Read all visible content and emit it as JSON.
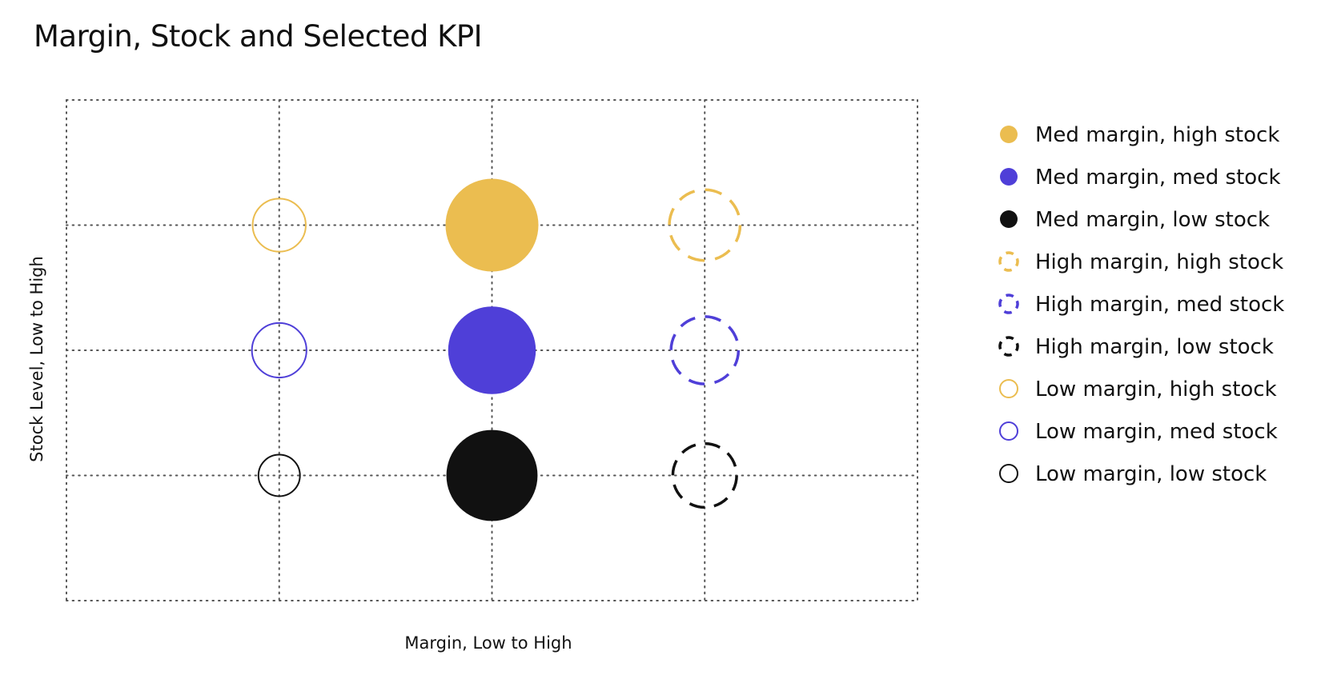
{
  "chart_data": {
    "type": "scatter",
    "title": "Margin, Stock and Selected KPI",
    "xlabel": "Margin, Low to High",
    "ylabel": "Stock Level, Low to High",
    "x_categories": [
      "Low",
      "Med",
      "High"
    ],
    "y_categories": [
      "Low",
      "Med",
      "High"
    ],
    "xlim": [
      0,
      4
    ],
    "ylim": [
      0,
      4
    ],
    "grid": true,
    "legend_position": "right",
    "colors": {
      "high_stock": "#EBBD50",
      "med_stock": "#4F3FD8",
      "low_stock": "#111111",
      "grid": "#555555",
      "text": "#111111"
    },
    "series": [
      {
        "name": "Med margin, high stock",
        "margin": "Med",
        "stock": "High",
        "x": 2,
        "y": 3,
        "kpi": 55,
        "style": "filled",
        "color": "#EBBD50"
      },
      {
        "name": "Med margin, med stock",
        "margin": "Med",
        "stock": "Med",
        "x": 2,
        "y": 2,
        "kpi": 49,
        "style": "filled",
        "color": "#4F3FD8"
      },
      {
        "name": "Med margin, low stock",
        "margin": "Med",
        "stock": "Low",
        "x": 2,
        "y": 1,
        "kpi": 53,
        "style": "filled",
        "color": "#111111"
      },
      {
        "name": "High margin, high stock",
        "margin": "High",
        "stock": "High",
        "x": 3,
        "y": 3,
        "kpi": 32,
        "style": "dashed",
        "color": "#EBBD50"
      },
      {
        "name": "High margin, med stock",
        "margin": "High",
        "stock": "Med",
        "x": 3,
        "y": 2,
        "kpi": 29,
        "style": "dashed",
        "color": "#4F3FD8"
      },
      {
        "name": "High margin, low stock",
        "margin": "High",
        "stock": "Low",
        "x": 3,
        "y": 1,
        "kpi": 26,
        "style": "dashed",
        "color": "#111111"
      },
      {
        "name": "Low margin, high stock",
        "margin": "Low",
        "stock": "High",
        "x": 1,
        "y": 3,
        "kpi": 18,
        "style": "outline",
        "color": "#EBBD50"
      },
      {
        "name": "Low margin, med stock",
        "margin": "Low",
        "stock": "Med",
        "x": 1,
        "y": 2,
        "kpi": 19,
        "style": "outline",
        "color": "#4F3FD8"
      },
      {
        "name": "Low margin, low stock",
        "margin": "Low",
        "stock": "Low",
        "x": 1,
        "y": 1,
        "kpi": 11,
        "style": "outline",
        "color": "#111111"
      }
    ]
  }
}
